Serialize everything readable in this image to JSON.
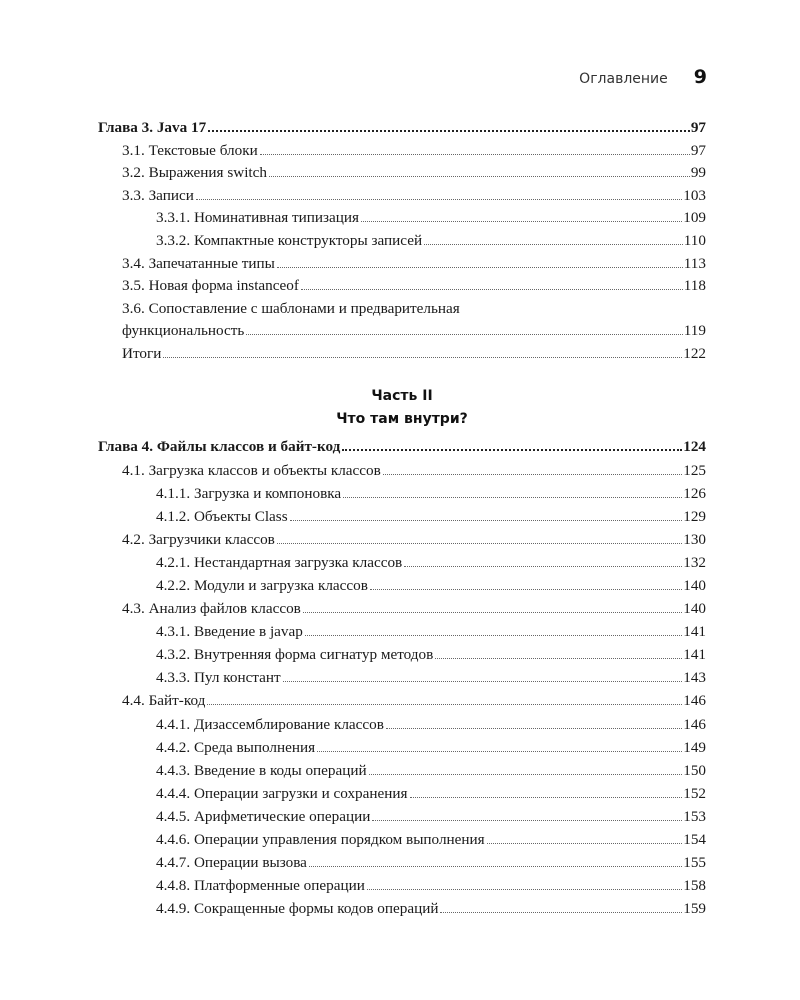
{
  "header": {
    "section": "Оглавление",
    "page_number": "9"
  },
  "chapter3": {
    "entries": [
      {
        "level": 0,
        "title": "Глава 3. Java 17",
        "page": "97"
      },
      {
        "level": 1,
        "title": "3.1. Текстовые блоки",
        "page": "97"
      },
      {
        "level": 1,
        "title": "3.2. Выражения switch",
        "page": "99"
      },
      {
        "level": 1,
        "title": "3.3. Записи",
        "page": "103"
      },
      {
        "level": 2,
        "title": "3.3.1. Номинативная типизация",
        "page": "109"
      },
      {
        "level": 2,
        "title": "3.3.2. Компактные конструкторы записей",
        "page": "110"
      },
      {
        "level": 1,
        "title": "3.4. Запечатанные типы",
        "page": "113"
      },
      {
        "level": 1,
        "title": "3.5. Новая форма instanceof",
        "page": "118"
      },
      {
        "level": 1,
        "title": "3.6. Сопоставление с шаблонами и предварительная",
        "title_cont": "функциональность",
        "page": "119"
      },
      {
        "level": 1,
        "title": "Итоги",
        "page": "122"
      }
    ]
  },
  "part2": {
    "label": "Часть II",
    "title": "Что там внутри?"
  },
  "chapter4": {
    "entries": [
      {
        "level": 0,
        "title": "Глава 4. Файлы классов и байт-код",
        "page": "124"
      },
      {
        "level": 1,
        "title": "4.1. Загрузка классов и объекты классов",
        "page": "125"
      },
      {
        "level": 2,
        "title": "4.1.1. Загрузка и компоновка",
        "page": "126"
      },
      {
        "level": 2,
        "title": "4.1.2. Объекты Class",
        "page": "129"
      },
      {
        "level": 1,
        "title": "4.2. Загрузчики классов",
        "page": "130"
      },
      {
        "level": 2,
        "title": "4.2.1. Нестандартная загрузка классов",
        "page": "132"
      },
      {
        "level": 2,
        "title": "4.2.2. Модули и загрузка классов",
        "page": "140"
      },
      {
        "level": 1,
        "title": "4.3. Анализ файлов классов",
        "page": "140"
      },
      {
        "level": 2,
        "title": "4.3.1. Введение в javap",
        "page": "141"
      },
      {
        "level": 2,
        "title": "4.3.2. Внутренняя форма сигнатур методов",
        "page": "141"
      },
      {
        "level": 2,
        "title": "4.3.3. Пул констант",
        "page": "143"
      },
      {
        "level": 1,
        "title": "4.4. Байт-код",
        "page": "146"
      },
      {
        "level": 2,
        "title": "4.4.1. Дизассемблирование классов",
        "page": "146"
      },
      {
        "level": 2,
        "title": "4.4.2. Среда выполнения",
        "page": "149"
      },
      {
        "level": 2,
        "title": "4.4.3. Введение в коды операций",
        "page": "150"
      },
      {
        "level": 2,
        "title": "4.4.4. Операции загрузки и сохранения",
        "page": "152"
      },
      {
        "level": 2,
        "title": "4.4.5. Арифметические операции",
        "page": "153"
      },
      {
        "level": 2,
        "title": "4.4.6. Операции управления порядком выполнения",
        "page": "154"
      },
      {
        "level": 2,
        "title": "4.4.7. Операции вызова",
        "page": "155"
      },
      {
        "level": 2,
        "title": "4.4.8. Платформенные операции",
        "page": "158"
      },
      {
        "level": 2,
        "title": "4.4.9. Сокращенные формы кодов операций",
        "page": "159"
      }
    ]
  }
}
